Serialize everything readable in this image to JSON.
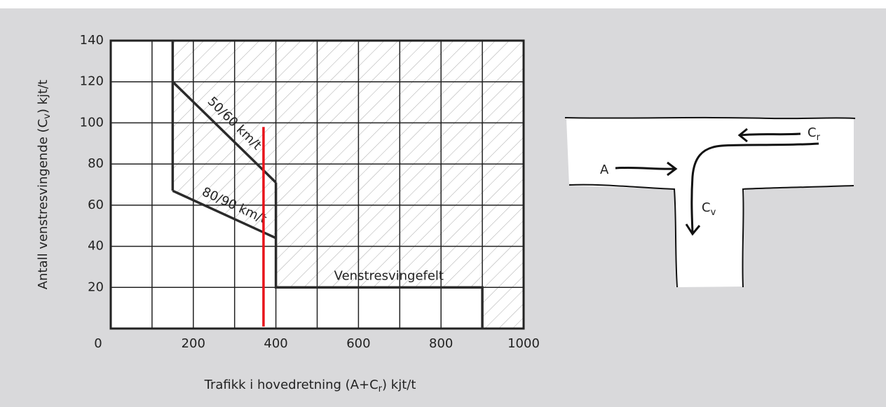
{
  "chart_data": {
    "type": "line",
    "ylabel": [
      "Antall venstresvingende (C",
      "v",
      ") kjt/t"
    ],
    "xlabel": [
      "Trafikk i hovedretning (A+C",
      "r",
      ") kjt/t"
    ],
    "xlim": [
      0,
      1000
    ],
    "xticks": [
      0,
      200,
      400,
      600,
      800,
      1000
    ],
    "xminor": [
      100,
      300,
      500,
      700,
      900
    ],
    "ylim": [
      0,
      140
    ],
    "yticks": [
      20,
      40,
      60,
      80,
      100,
      120,
      140
    ],
    "grid": true,
    "series": [
      {
        "name": "50/60 km/t",
        "color": "#2b2b2b",
        "x": [
          150,
          400
        ],
        "values": [
          120,
          71
        ]
      },
      {
        "name": "80/90 km/t",
        "color": "#2b2b2b",
        "x": [
          150,
          400
        ],
        "values": [
          67,
          44
        ]
      },
      {
        "name": "Venstresvingefelt",
        "color": "#2b2b2b",
        "x": [
          400,
          400,
          900,
          900
        ],
        "values": [
          71,
          20,
          20,
          0
        ]
      },
      {
        "color": "#2b2b2b",
        "x": [
          150,
          150
        ],
        "values": [
          140,
          67
        ]
      },
      {
        "color": "#e8141b",
        "x": [
          370,
          370
        ],
        "values": [
          1,
          98
        ]
      }
    ]
  },
  "diagram": {
    "labels": [
      {
        "main": "A"
      },
      {
        "main": "C",
        "sub": "r"
      },
      {
        "main": "C",
        "sub": "v"
      }
    ]
  }
}
